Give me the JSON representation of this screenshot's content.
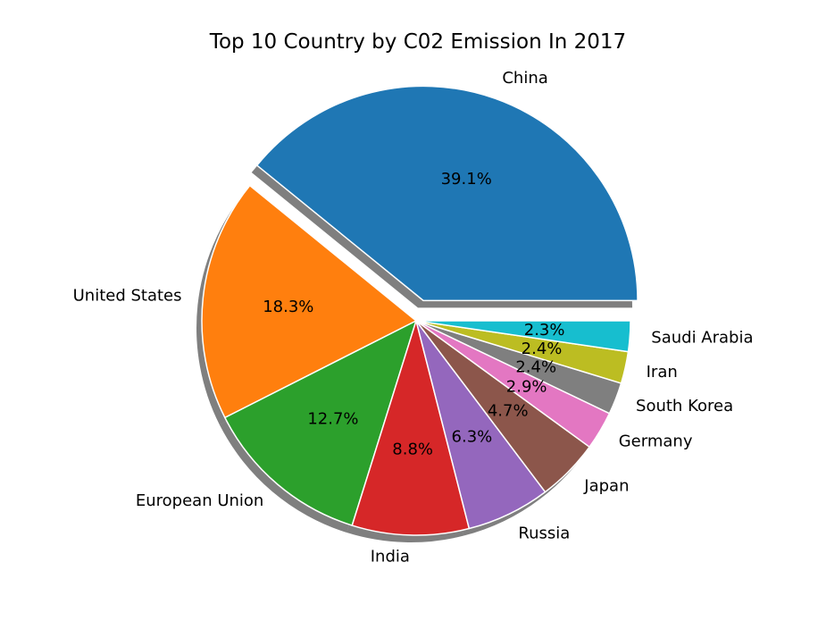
{
  "chart_data": {
    "type": "pie",
    "title": "Top 10 Country by C02 Emission In 2017",
    "slices": [
      {
        "label": "China",
        "value": 39.1,
        "pct_label": "39.1%",
        "color": "#1f77b4",
        "exploded": true
      },
      {
        "label": "United States",
        "value": 18.3,
        "pct_label": "18.3%",
        "color": "#ff7f0e",
        "exploded": false
      },
      {
        "label": "European Union",
        "value": 12.7,
        "pct_label": "12.7%",
        "color": "#2ca02c",
        "exploded": false
      },
      {
        "label": "India",
        "value": 8.8,
        "pct_label": "8.8%",
        "color": "#d62728",
        "exploded": false
      },
      {
        "label": "Russia",
        "value": 6.3,
        "pct_label": "6.3%",
        "color": "#9467bd",
        "exploded": false
      },
      {
        "label": "Japan",
        "value": 4.7,
        "pct_label": "4.7%",
        "color": "#8c564b",
        "exploded": false
      },
      {
        "label": "Germany",
        "value": 2.9,
        "pct_label": "2.9%",
        "color": "#e377c2",
        "exploded": false
      },
      {
        "label": "South Korea",
        "value": 2.4,
        "pct_label": "2.4%",
        "color": "#7f7f7f",
        "exploded": false
      },
      {
        "label": "Iran",
        "value": 2.4,
        "pct_label": "2.4%",
        "color": "#bcbd22",
        "exploded": false
      },
      {
        "label": "Saudi Arabia",
        "value": 2.3,
        "pct_label": "2.3%",
        "color": "#17becf",
        "exploded": false
      }
    ],
    "start_angle_deg": 0,
    "direction": "counterclockwise",
    "shadow": true
  }
}
